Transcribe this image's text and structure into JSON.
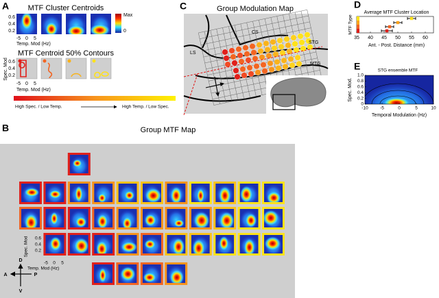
{
  "panels": {
    "a": {
      "letter": "A",
      "title": "MTF Cluster Centroids",
      "colorbar_max": "Max",
      "colorbar_min": "0",
      "yticks": [
        0.6,
        0.4,
        0.2
      ],
      "xticks": [
        -5,
        0,
        5
      ],
      "xlabel": "Temp. Mod (Hz)",
      "contour_title": "MTF Centroid 50% Contours",
      "contour_ylabel": "Spec. Mod",
      "contour_yticks": [
        0.6,
        0.4,
        0.2
      ],
      "contour_xticks": [
        -5,
        0,
        5
      ],
      "contour_xlabel": "Temp. Mod (Hz)",
      "scale_left": "High Spec. / Low Temp.",
      "scale_right": "High Temp. / Low Spec."
    },
    "b": {
      "letter": "B",
      "title": "Group MTF Map",
      "ylabel": "Spec. Mod",
      "yticks": [
        0.6,
        0.4,
        0.2
      ],
      "xticks": [
        -5,
        0,
        5
      ],
      "xlabel": "Temp. Mod (Hz)",
      "compass": [
        "D",
        "V",
        "A",
        "P"
      ]
    },
    "c": {
      "letter": "C",
      "title": "Group Modulation Map",
      "cs": "CS",
      "ls": "LS",
      "stg": "STG",
      "mtg": "MTG"
    },
    "d": {
      "letter": "D"
    },
    "e": {
      "letter": "E"
    }
  },
  "chart_data": [
    {
      "type": "dot-errorbar",
      "title": "Average MTF Cluster Location",
      "xlabel": "Ant. - Post. Distance (mm)",
      "ylabel": "MTF Type",
      "xlim": [
        35,
        63
      ],
      "xticks": [
        35,
        40,
        45,
        50,
        55,
        60
      ],
      "values": [
        55,
        50,
        47,
        46
      ],
      "errors": [
        1.5,
        1.5,
        1.5,
        2
      ],
      "colors": [
        "#ffe21a",
        "#f9a31c",
        "#f26522",
        "#e0201b"
      ]
    },
    {
      "type": "heatmap",
      "title": "STG ensemble MTF",
      "xlabel": "Temporal  Modulation (Hz)",
      "ylabel": "Spec. Mod.",
      "xlim": [
        -10,
        10
      ],
      "ylim": [
        0,
        1
      ],
      "xticks": [
        -10,
        -5,
        0,
        5,
        10
      ],
      "yticks": [
        0,
        0.2,
        0.4,
        0.6,
        0.8,
        {
          "value": 1,
          "label": "1.0"
        }
      ]
    }
  ]
}
